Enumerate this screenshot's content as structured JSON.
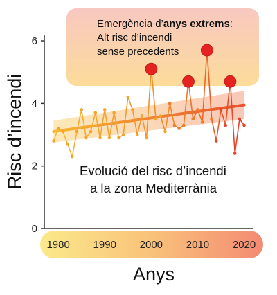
{
  "chart_data": {
    "type": "line",
    "xlabel": "Anys",
    "ylabel": "Risc d’incendi",
    "ylim": [
      0,
      6.2
    ],
    "xlim": [
      1977,
      2022
    ],
    "x_ticks": [
      1980,
      1990,
      2000,
      2010,
      2020
    ],
    "y_ticks": [
      0,
      2,
      4,
      6
    ],
    "annotation_box": {
      "line1_prefix": "Emergència d’",
      "line1_bold": "anys extrems",
      "line1_suffix": ":",
      "line2": "Alt risc d’incendi",
      "line3": "sense precedents"
    },
    "inner_text": {
      "line1": "Evolució del risc d’incendi",
      "line2": "a la zona Mediterrània"
    },
    "series": [
      {
        "x": [
          1979,
          1980,
          1981,
          1982,
          1983,
          1984,
          1985,
          1986,
          1987,
          1988,
          1989,
          1990,
          1991,
          1992,
          1993,
          1994,
          1995,
          1996,
          1997,
          1998,
          1999,
          2000,
          2001,
          2002,
          2003,
          2004,
          2005,
          2006,
          2007,
          2008,
          2009,
          2010,
          2011,
          2012,
          2013,
          2014,
          2015,
          2016,
          2017,
          2018,
          2019,
          2020
        ],
        "values": [
          2.8,
          3.2,
          3.1,
          2.7,
          2.3,
          3.1,
          3.8,
          2.9,
          3.1,
          3.7,
          2.9,
          3.8,
          2.9,
          3.7,
          2.9,
          3.0,
          4.2,
          3.8,
          3.0,
          3.6,
          2.9,
          5.1,
          3.5,
          3.6,
          3.1,
          4.0,
          3.3,
          3.2,
          3.3,
          4.7,
          3.5,
          3.8,
          3.4,
          5.7,
          3.5,
          2.8,
          3.8,
          3.3,
          4.7,
          2.4,
          3.5,
          3.3
        ]
      }
    ],
    "extreme_points": [
      {
        "x": 2000,
        "y": 5.1
      },
      {
        "x": 2008,
        "y": 4.7
      },
      {
        "x": 2012,
        "y": 5.7
      },
      {
        "x": 2017,
        "y": 4.7
      }
    ],
    "trend": {
      "x": [
        1979,
        2020
      ],
      "values": [
        3.1,
        3.95
      ]
    },
    "colors": {
      "line_start": "#f5a623",
      "line_end": "#e8402a",
      "extreme": "#e42320",
      "box_fill": "#fbd79e",
      "box_pink": "#f7c2b8",
      "band": "#f5b27a",
      "axis": "#333333"
    }
  }
}
